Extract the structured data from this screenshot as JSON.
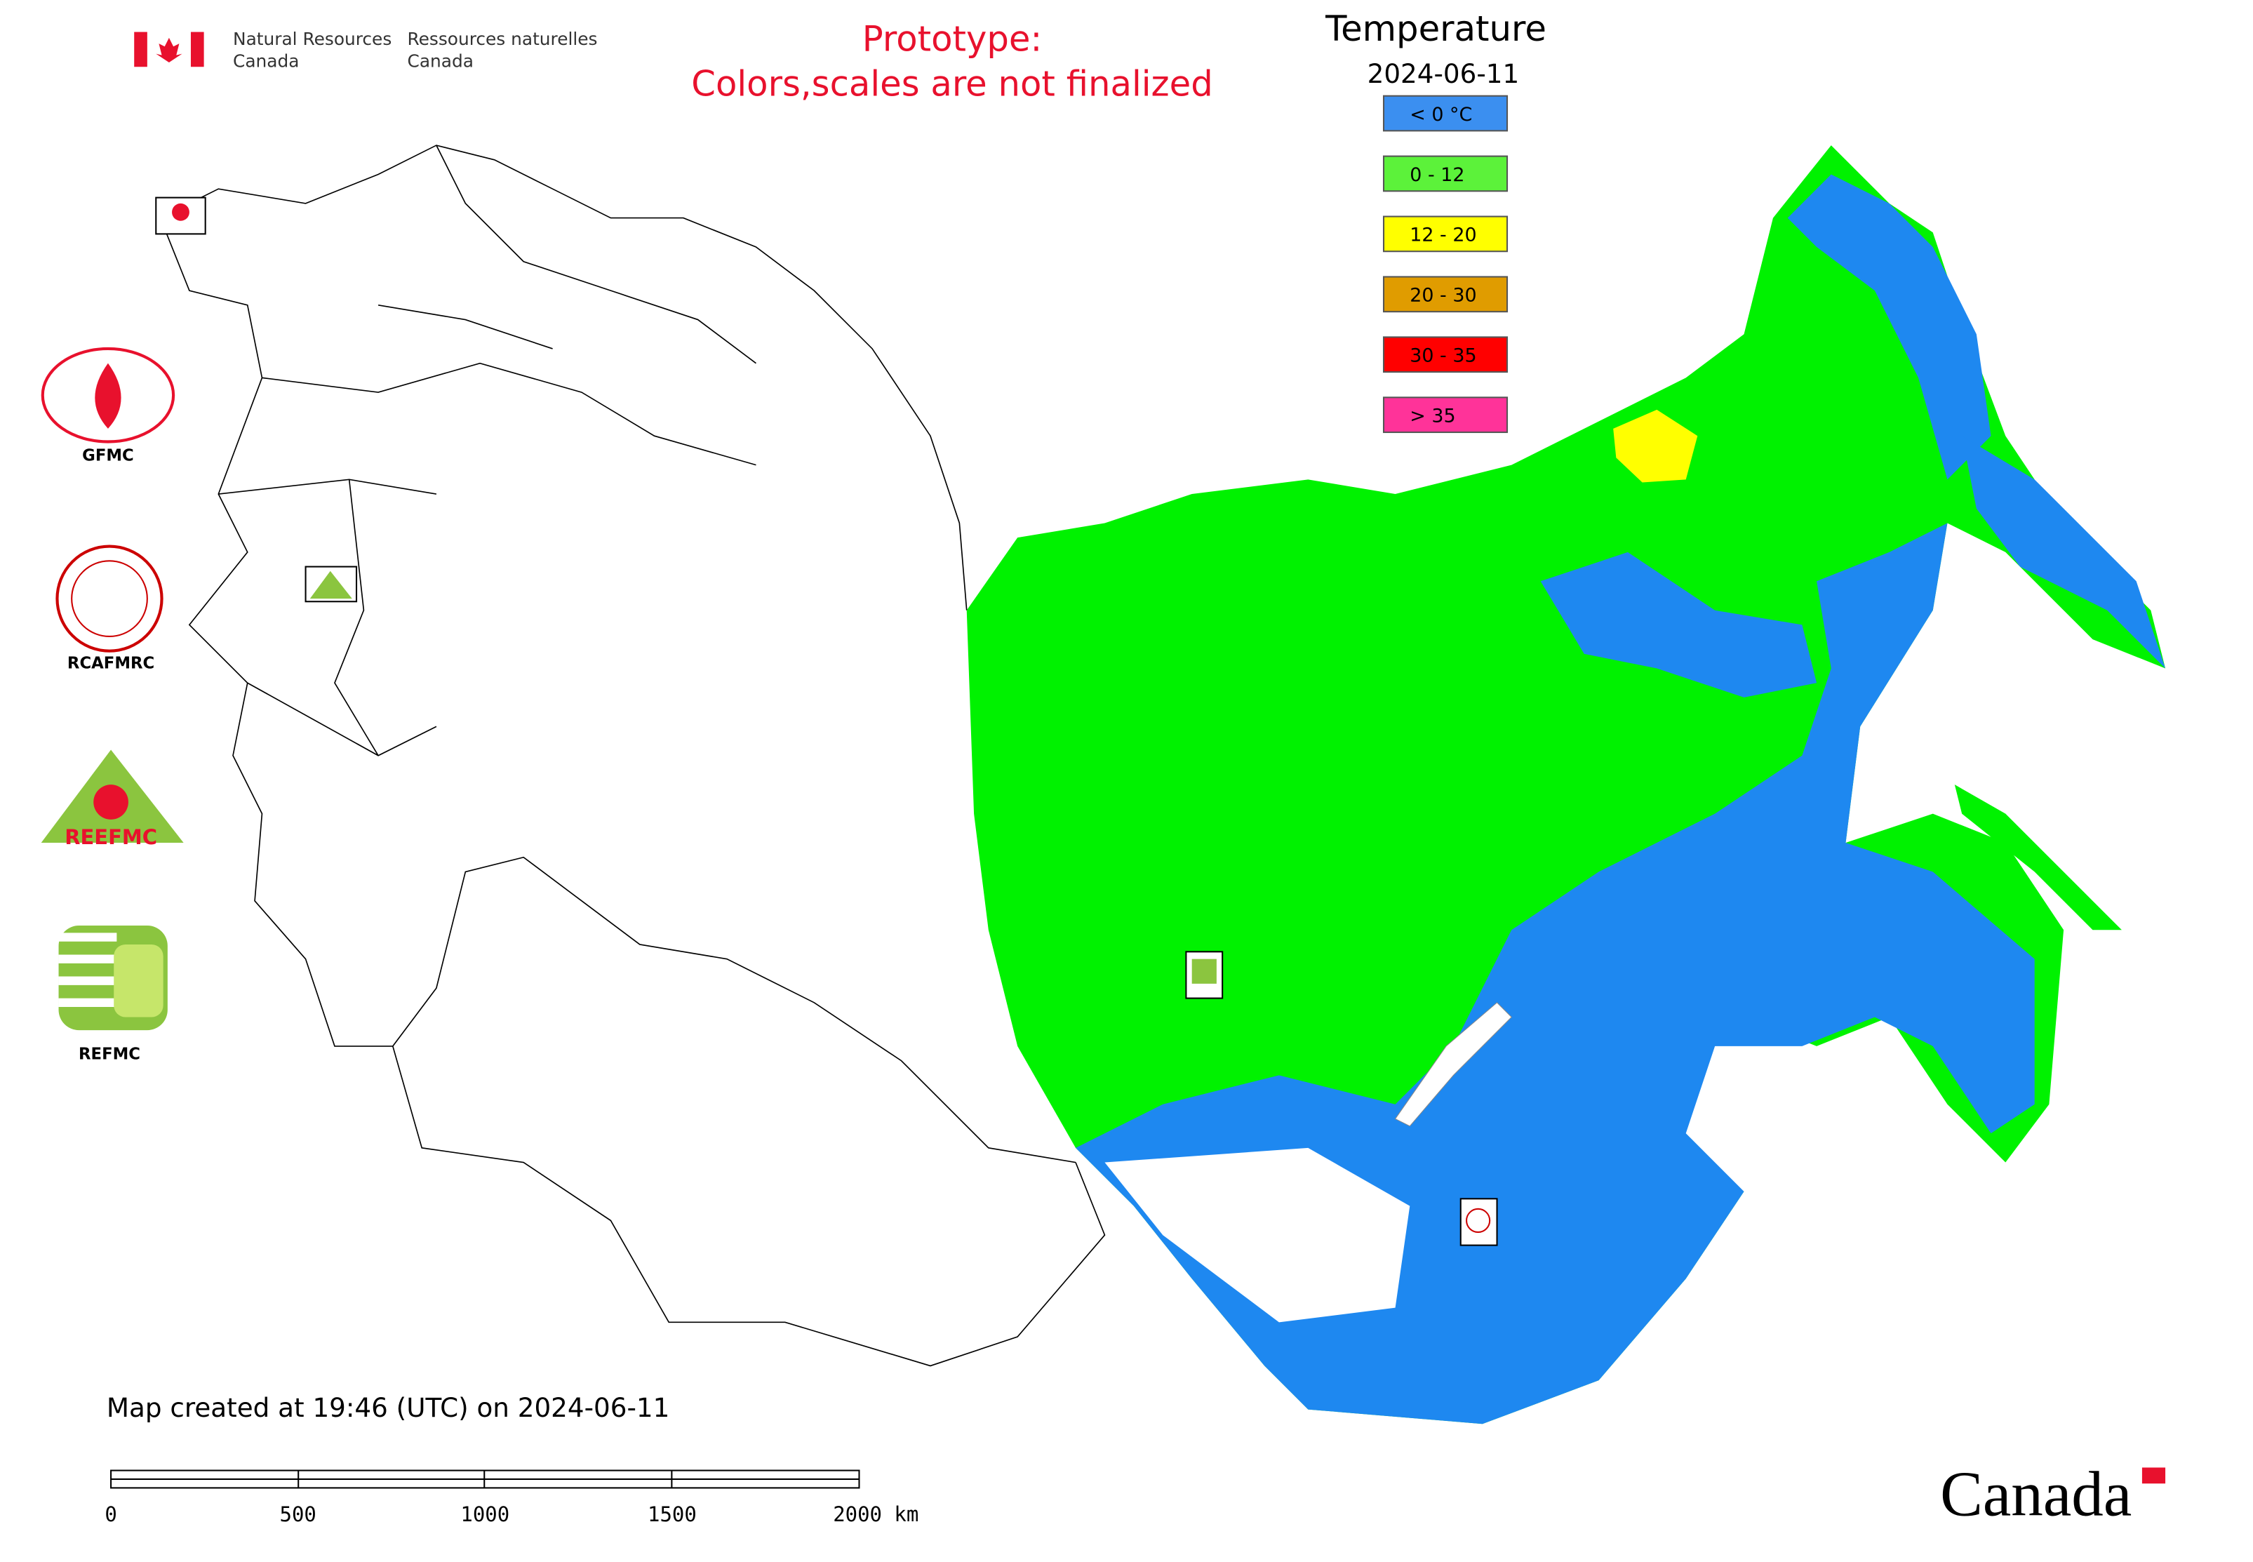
{
  "header": {
    "agency_en": [
      "Natural Resources",
      "Canada"
    ],
    "agency_fr": [
      "Ressources naturelles",
      "Canada"
    ],
    "notice": [
      "Prototype:",
      "Colors,scales are not finalized"
    ]
  },
  "legend": {
    "title": "Temperature",
    "date": "2024-06-11",
    "items": [
      {
        "label": "< 0 °C",
        "color": "#3b8ff0"
      },
      {
        "label": "0 - 12",
        "color": "#5cf23a"
      },
      {
        "label": "12 - 20",
        "color": "#ffff00"
      },
      {
        "label": "20 - 30",
        "color": "#e09c00"
      },
      {
        "label": "30 - 35",
        "color": "#ff0000"
      },
      {
        "label": "> 35",
        "color": "#ff3399"
      }
    ]
  },
  "logos": [
    "GFMC",
    "RCAFMRC",
    "REEFMC",
    "REFMC"
  ],
  "footer": {
    "created": "Map created at 19:46 (UTC) on 2024-06-11",
    "wordmark": "Canada"
  },
  "scale_bar": {
    "labels": [
      "0",
      "500",
      "1000",
      "1500",
      "2000 km"
    ]
  }
}
